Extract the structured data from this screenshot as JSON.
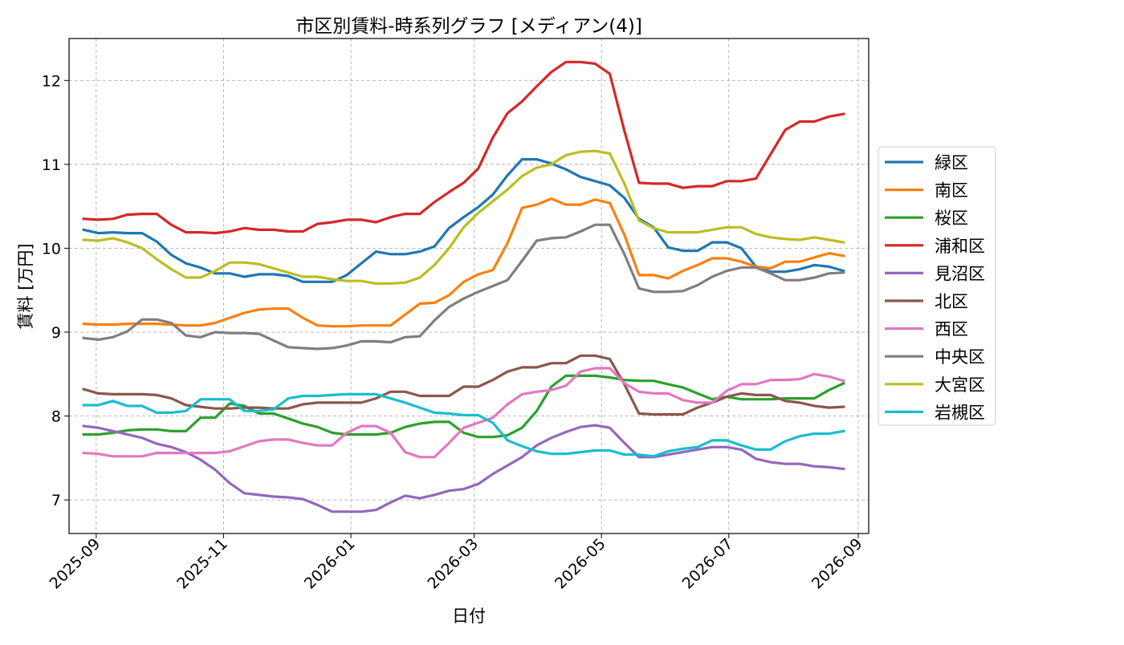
{
  "chart_data": {
    "type": "line",
    "title": "市区別賃料-時系列グラフ [メディアン(4)]",
    "xlabel": "日付",
    "ylabel": "賃料 [万円]",
    "x_axis": {
      "kind": "date",
      "range": [
        "2025-08-19",
        "2026-09-06"
      ],
      "ticks": [
        "2025-09-01",
        "2025-11-01",
        "2026-01-01",
        "2026-03-01",
        "2026-05-01",
        "2026-07-01",
        "2026-09-01"
      ],
      "tick_labels": [
        "2025-09",
        "2025-11",
        "2026-01",
        "2026-03",
        "2026-05",
        "2026-07",
        "2026-09"
      ]
    },
    "ylim": [
      6.6,
      12.5
    ],
    "y_ticks": [
      7,
      8,
      9,
      10,
      11,
      12
    ],
    "y_tick_labels": [
      "7",
      "8",
      "9",
      "10",
      "11",
      "12"
    ],
    "grid": true,
    "legend_position": "right, outside plot",
    "x": [
      "2025-08-26",
      "2025-09-02",
      "2025-09-09",
      "2025-09-16",
      "2025-09-23",
      "2025-09-30",
      "2025-10-07",
      "2025-10-14",
      "2025-10-21",
      "2025-10-28",
      "2025-11-04",
      "2025-11-11",
      "2025-11-18",
      "2025-11-25",
      "2025-12-02",
      "2025-12-09",
      "2025-12-16",
      "2025-12-23",
      "2025-12-30",
      "2026-01-06",
      "2026-01-13",
      "2026-01-20",
      "2026-01-27",
      "2026-02-03",
      "2026-02-10",
      "2026-02-17",
      "2026-02-24",
      "2026-03-03",
      "2026-03-10",
      "2026-03-17",
      "2026-03-24",
      "2026-03-31",
      "2026-04-07",
      "2026-04-14",
      "2026-04-21",
      "2026-04-28",
      "2026-05-05",
      "2026-05-12",
      "2026-05-19",
      "2026-05-26",
      "2026-06-02",
      "2026-06-09",
      "2026-06-16",
      "2026-06-23",
      "2026-06-30",
      "2026-07-07",
      "2026-07-14",
      "2026-07-21",
      "2026-07-28",
      "2026-08-04",
      "2026-08-11",
      "2026-08-18",
      "2026-08-25"
    ],
    "series": [
      {
        "name": "緑区",
        "color": "#1f77b4",
        "values": [
          10.22,
          10.18,
          10.19,
          10.18,
          10.18,
          10.08,
          9.92,
          9.82,
          9.77,
          9.7,
          9.7,
          9.66,
          9.69,
          9.69,
          9.67,
          9.6,
          9.6,
          9.6,
          9.68,
          9.82,
          9.96,
          9.93,
          9.93,
          9.96,
          10.02,
          10.24,
          10.37,
          10.49,
          10.64,
          10.87,
          11.06,
          11.06,
          11.01,
          10.94,
          10.85,
          10.8,
          10.75,
          10.6,
          10.35,
          10.25,
          10.01,
          9.97,
          9.97,
          10.07,
          10.07,
          10.0,
          9.78,
          9.72,
          9.72,
          9.75,
          9.8,
          9.78,
          9.73
        ]
      },
      {
        "name": "南区",
        "color": "#ff7f0e",
        "values": [
          9.1,
          9.09,
          9.09,
          9.1,
          9.1,
          9.1,
          9.09,
          9.08,
          9.08,
          9.11,
          9.17,
          9.23,
          9.27,
          9.28,
          9.28,
          9.17,
          9.08,
          9.07,
          9.07,
          9.08,
          9.08,
          9.08,
          9.21,
          9.34,
          9.35,
          9.44,
          9.6,
          9.69,
          9.74,
          10.06,
          10.48,
          10.52,
          10.59,
          10.52,
          10.52,
          10.58,
          10.54,
          10.16,
          9.68,
          9.68,
          9.64,
          9.73,
          9.8,
          9.88,
          9.88,
          9.84,
          9.78,
          9.76,
          9.84,
          9.84,
          9.89,
          9.94,
          9.91
        ]
      },
      {
        "name": "桜区",
        "color": "#2ca02c",
        "values": [
          7.78,
          7.78,
          7.8,
          7.83,
          7.84,
          7.84,
          7.82,
          7.82,
          7.98,
          7.98,
          8.15,
          8.12,
          8.03,
          8.03,
          7.97,
          7.91,
          7.87,
          7.8,
          7.78,
          7.78,
          7.78,
          7.8,
          7.87,
          7.91,
          7.93,
          7.93,
          7.8,
          7.75,
          7.75,
          7.77,
          7.86,
          8.06,
          8.35,
          8.48,
          8.48,
          8.48,
          8.46,
          8.43,
          8.42,
          8.42,
          8.38,
          8.34,
          8.27,
          8.2,
          8.23,
          8.2,
          8.2,
          8.2,
          8.21,
          8.21,
          8.21,
          8.31,
          8.39
        ]
      },
      {
        "name": "浦和区",
        "color": "#d62728",
        "values": [
          10.35,
          10.34,
          10.35,
          10.4,
          10.41,
          10.41,
          10.28,
          10.19,
          10.19,
          10.18,
          10.2,
          10.24,
          10.22,
          10.22,
          10.2,
          10.2,
          10.29,
          10.31,
          10.34,
          10.34,
          10.31,
          10.37,
          10.41,
          10.41,
          10.55,
          10.67,
          10.78,
          10.95,
          11.32,
          11.61,
          11.75,
          11.93,
          12.1,
          12.22,
          12.22,
          12.2,
          12.08,
          11.4,
          10.78,
          10.77,
          10.77,
          10.72,
          10.74,
          10.74,
          10.8,
          10.8,
          10.83,
          11.12,
          11.41,
          11.51,
          11.51,
          11.57,
          11.6
        ]
      },
      {
        "name": "見沼区",
        "color": "#9467bd",
        "values": [
          7.88,
          7.86,
          7.82,
          7.78,
          7.74,
          7.67,
          7.63,
          7.57,
          7.48,
          7.36,
          7.2,
          7.08,
          7.06,
          7.04,
          7.03,
          7.01,
          6.94,
          6.86,
          6.86,
          6.86,
          6.88,
          6.97,
          7.05,
          7.02,
          7.06,
          7.11,
          7.13,
          7.19,
          7.31,
          7.41,
          7.51,
          7.65,
          7.74,
          7.81,
          7.87,
          7.89,
          7.86,
          7.68,
          7.51,
          7.51,
          7.54,
          7.57,
          7.6,
          7.63,
          7.63,
          7.6,
          7.49,
          7.45,
          7.43,
          7.43,
          7.4,
          7.39,
          7.37
        ]
      },
      {
        "name": "北区",
        "color": "#8c564b",
        "values": [
          8.32,
          8.27,
          8.26,
          8.26,
          8.26,
          8.25,
          8.21,
          8.13,
          8.11,
          8.09,
          8.09,
          8.1,
          8.1,
          8.09,
          8.09,
          8.14,
          8.16,
          8.16,
          8.16,
          8.16,
          8.21,
          8.29,
          8.29,
          8.24,
          8.24,
          8.24,
          8.35,
          8.35,
          8.43,
          8.53,
          8.58,
          8.58,
          8.63,
          8.63,
          8.72,
          8.72,
          8.68,
          8.38,
          8.03,
          8.02,
          8.02,
          8.02,
          8.1,
          8.16,
          8.23,
          8.27,
          8.25,
          8.25,
          8.18,
          8.16,
          8.12,
          8.1,
          8.11
        ]
      },
      {
        "name": "西区",
        "color": "#e377c2",
        "values": [
          7.56,
          7.55,
          7.52,
          7.52,
          7.52,
          7.56,
          7.56,
          7.56,
          7.56,
          7.56,
          7.58,
          7.64,
          7.7,
          7.72,
          7.72,
          7.68,
          7.65,
          7.65,
          7.8,
          7.88,
          7.88,
          7.8,
          7.57,
          7.51,
          7.51,
          7.68,
          7.86,
          7.92,
          7.98,
          8.14,
          8.26,
          8.29,
          8.31,
          8.36,
          8.53,
          8.57,
          8.57,
          8.39,
          8.29,
          8.27,
          8.27,
          8.19,
          8.16,
          8.16,
          8.3,
          8.38,
          8.38,
          8.43,
          8.43,
          8.44,
          8.5,
          8.47,
          8.42
        ]
      },
      {
        "name": "中央区",
        "color": "#7f7f7f",
        "values": [
          8.93,
          8.91,
          8.94,
          9.01,
          9.15,
          9.15,
          9.11,
          8.96,
          8.94,
          9.0,
          8.99,
          8.99,
          8.98,
          8.9,
          8.82,
          8.81,
          8.8,
          8.81,
          8.84,
          8.89,
          8.89,
          8.88,
          8.94,
          8.95,
          9.14,
          9.3,
          9.4,
          9.48,
          9.55,
          9.62,
          9.85,
          10.09,
          10.12,
          10.13,
          10.2,
          10.28,
          10.28,
          9.93,
          9.52,
          9.48,
          9.48,
          9.49,
          9.56,
          9.66,
          9.73,
          9.77,
          9.77,
          9.7,
          9.62,
          9.62,
          9.65,
          9.7,
          9.71
        ]
      },
      {
        "name": "大宮区",
        "color": "#bcbd22",
        "values": [
          10.1,
          10.09,
          10.12,
          10.07,
          10.0,
          9.87,
          9.75,
          9.65,
          9.65,
          9.73,
          9.83,
          9.83,
          9.81,
          9.76,
          9.71,
          9.66,
          9.66,
          9.63,
          9.61,
          9.61,
          9.58,
          9.58,
          9.59,
          9.65,
          9.8,
          10.0,
          10.25,
          10.42,
          10.56,
          10.7,
          10.86,
          10.96,
          11.0,
          11.11,
          11.15,
          11.16,
          11.13,
          10.77,
          10.33,
          10.24,
          10.19,
          10.19,
          10.19,
          10.22,
          10.25,
          10.25,
          10.17,
          10.13,
          10.11,
          10.1,
          10.13,
          10.1,
          10.07
        ]
      },
      {
        "name": "岩槻区",
        "color": "#17becf",
        "values": [
          8.13,
          8.13,
          8.18,
          8.12,
          8.12,
          8.04,
          8.04,
          8.06,
          8.2,
          8.2,
          8.2,
          8.06,
          8.06,
          8.08,
          8.21,
          8.24,
          8.24,
          8.25,
          8.26,
          8.26,
          8.26,
          8.21,
          8.16,
          8.1,
          8.04,
          8.03,
          8.01,
          8.01,
          7.92,
          7.71,
          7.64,
          7.58,
          7.55,
          7.55,
          7.57,
          7.59,
          7.59,
          7.54,
          7.54,
          7.52,
          7.58,
          7.61,
          7.63,
          7.71,
          7.71,
          7.65,
          7.6,
          7.6,
          7.7,
          7.76,
          7.79,
          7.79,
          7.82
        ]
      }
    ]
  }
}
